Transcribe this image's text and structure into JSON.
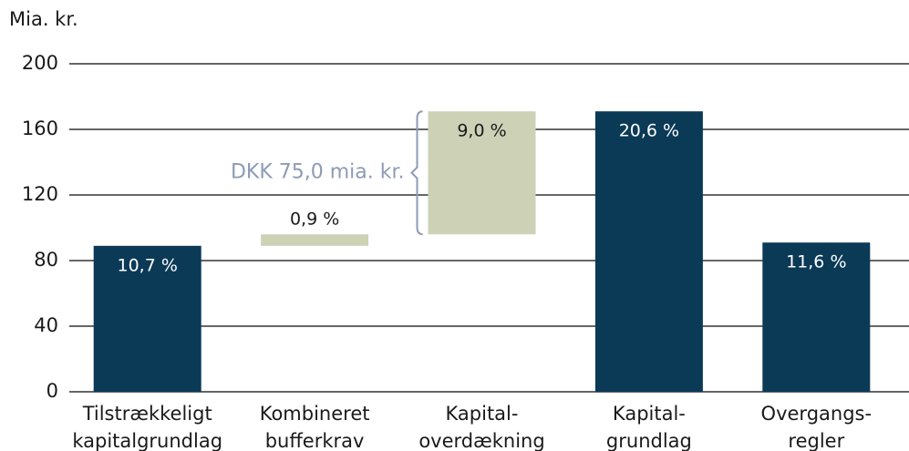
{
  "chart_data": {
    "type": "waterfall",
    "y_label": "Mia. kr.",
    "categories": [
      [
        "Tilstrækkeligt",
        "kapitalgrundlag"
      ],
      [
        "Kombineret",
        "bufferkrav"
      ],
      [
        "Kapital-",
        "overdækning"
      ],
      [
        "Kapital-",
        "grundlag"
      ],
      [
        "Overgangs-",
        "regler"
      ]
    ],
    "values": [
      89,
      7,
      75,
      171,
      91
    ],
    "measure": [
      "absolute",
      "relative",
      "relative",
      "absolute",
      "absolute"
    ],
    "colors": [
      "#0b3a57",
      "#cdd2b7",
      "#cdd2b7",
      "#0b3a57",
      "#0b3a57"
    ],
    "ratio_labels": [
      "10,7 %",
      "0,9 %",
      "9,0 %",
      "20,6 %",
      "11,6 %"
    ],
    "annotation": "DKK 75,0 mia. kr.",
    "ylim": [
      0,
      200
    ],
    "yticks": [
      0,
      40,
      80,
      120,
      160,
      200
    ],
    "grid": true
  }
}
